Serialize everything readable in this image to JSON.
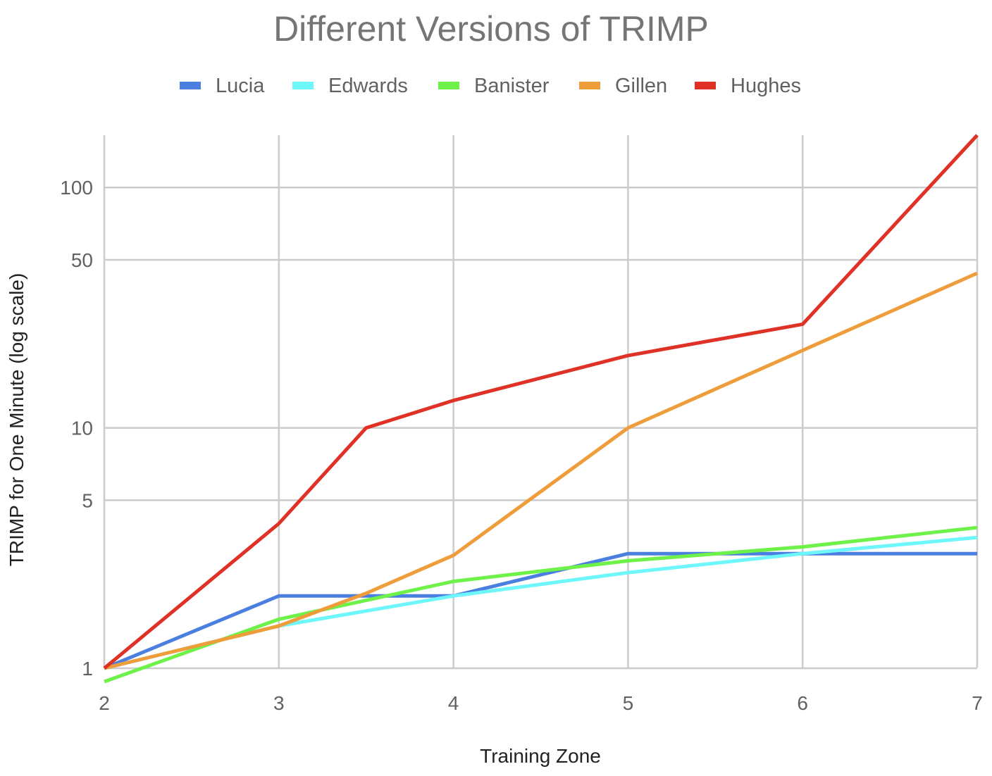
{
  "chart_data": {
    "type": "line",
    "title": "Different Versions of TRIMP",
    "xlabel": "Training Zone",
    "ylabel": "TRIMP for One Minute (log scale)",
    "yscale": "log",
    "xlim": [
      2,
      7
    ],
    "ylim": [
      0.88,
      165
    ],
    "xticks": [
      "2",
      "3",
      "4",
      "5",
      "6",
      "7"
    ],
    "yticks": [
      {
        "value": 1,
        "label": "1"
      },
      {
        "value": 5,
        "label": "5"
      },
      {
        "value": 10,
        "label": "10"
      },
      {
        "value": 50,
        "label": "50"
      },
      {
        "value": 100,
        "label": "100"
      }
    ],
    "grid": true,
    "legend_position": "top",
    "series": [
      {
        "name": "Lucia",
        "color": "#4a7fe0",
        "points": [
          [
            2,
            1
          ],
          [
            3,
            2
          ],
          [
            4,
            2
          ],
          [
            5,
            3
          ],
          [
            6,
            3
          ],
          [
            7,
            3
          ]
        ]
      },
      {
        "name": "Edwards",
        "color": "#6df7fb",
        "points": [
          [
            2,
            1
          ],
          [
            3,
            1.5
          ],
          [
            4,
            2
          ],
          [
            5,
            2.5
          ],
          [
            6,
            3
          ],
          [
            7,
            3.5
          ]
        ]
      },
      {
        "name": "Banister",
        "color": "#6ef24a",
        "points": [
          [
            2,
            0.88
          ],
          [
            3,
            1.6
          ],
          [
            4,
            2.3
          ],
          [
            5,
            2.8
          ],
          [
            6,
            3.2
          ],
          [
            7,
            3.85
          ]
        ]
      },
      {
        "name": "Gillen",
        "color": "#ee9d3a",
        "points": [
          [
            2,
            1
          ],
          [
            3,
            1.5
          ],
          [
            3.5,
            2.05
          ],
          [
            4,
            2.95
          ],
          [
            5,
            10
          ],
          [
            6,
            21
          ],
          [
            7,
            44
          ]
        ]
      },
      {
        "name": "Hughes",
        "color": "#df3126",
        "points": [
          [
            2,
            1
          ],
          [
            3,
            4
          ],
          [
            3.5,
            10
          ],
          [
            4,
            13
          ],
          [
            5,
            20
          ],
          [
            6,
            27
          ],
          [
            7,
            165
          ]
        ]
      }
    ]
  }
}
